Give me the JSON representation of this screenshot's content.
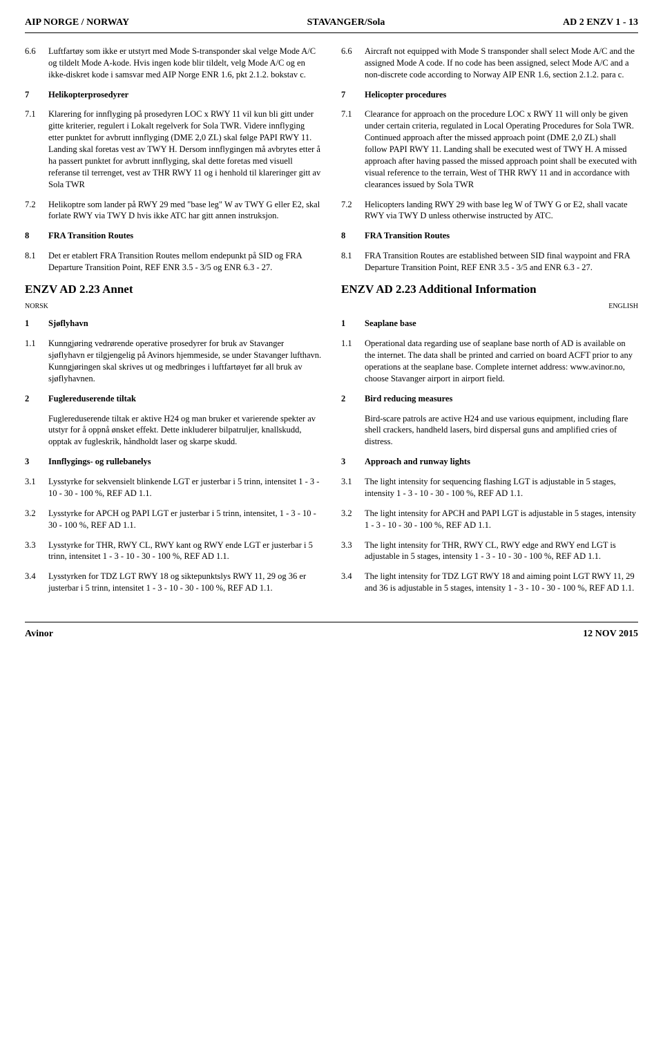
{
  "header": {
    "left": "AIP NORGE / NORWAY",
    "center": "STAVANGER/Sola",
    "right": "AD 2 ENZV 1 - 13"
  },
  "footer": {
    "left": "Avinor",
    "right": "12 NOV 2015"
  },
  "left": {
    "p66_num": "6.6",
    "p66": "Luftfartøy som ikke er utstyrt med Mode S-transponder skal velge Mode A/C og tildelt Mode A-kode. Hvis ingen kode blir tildelt, velg Mode A/C og en ikke-diskret kode i samsvar med AIP Norge ENR 1.6, pkt 2.1.2. bokstav c.",
    "h7_num": "7",
    "h7": "Helikopterprosedyrer",
    "p71_num": "7.1",
    "p71": "Klarering for innflyging på prosedyren LOC x RWY 11 vil kun bli gitt under gitte kriterier, regulert i Lokalt regelverk for Sola TWR. Videre innflyging etter punktet for avbrutt innflyging (DME 2,0 ZL) skal følge PAPI RWY 11. Landing skal foretas vest av TWY H. Dersom innflygingen må avbrytes etter å ha passert punktet for avbrutt innflyging, skal dette foretas med visuell referanse til terrenget, vest av THR RWY 11 og i henhold til klareringer gitt av Sola TWR",
    "p72_num": "7.2",
    "p72": "Helikoptre som lander på RWY 29 med \"base leg\" W av TWY G eller E2, skal forlate RWY via TWY D hvis ikke ATC har gitt annen instruksjon.",
    "h8_num": "8",
    "h8": "FRA Transition Routes",
    "p81_num": "8.1",
    "p81": "Det er etablert FRA Transition Routes mellom endepunkt på SID og FRA Departure Transition Point, REF ENR 3.5 - 3/5 og ENR 6.3 - 27.",
    "sec_title": "ENZV AD 2.23   Annet",
    "lang": "NORSK",
    "h1_num": "1",
    "h1": "Sjøflyhavn",
    "p11_num": "1.1",
    "p11": "Kunngjøring vedrørende operative prosedyrer for bruk av Stavanger sjøflyhavn er tilgjengelig på Avinors hjemmeside, se under Stavanger lufthavn. Kunngjøringen skal skrives ut og medbringes i luftfartøyet før all bruk av sjøflyhavnen.",
    "h2_num": "2",
    "h2": "Fuglereduserende tiltak",
    "p2": "Fuglereduserende tiltak er aktive H24 og man bruker et varierende spekter av utstyr for å oppnå ønsket effekt. Dette inkluderer bilpatruljer, knallskudd, opptak av fugleskrik, håndholdt laser og skarpe skudd.",
    "h3_num": "3",
    "h3": "Innflygings- og rullebanelys",
    "p31_num": "3.1",
    "p31": "Lysstyrke for sekvensielt blinkende LGT er justerbar i 5 trinn, intensitet 1 - 3 - 10 - 30 - 100 %, REF AD 1.1.",
    "p32_num": "3.2",
    "p32": "Lysstyrke for APCH og PAPI LGT er justerbar i 5 trinn, intensitet, 1 - 3 - 10 - 30 - 100 %, REF AD 1.1.",
    "p33_num": "3.3",
    "p33": "Lysstyrke for THR, RWY CL, RWY kant og RWY ende LGT er justerbar i 5 trinn, intensitet 1 - 3 - 10 - 30 - 100 %, REF AD 1.1.",
    "p34_num": "3.4",
    "p34": "Lysstyrken for TDZ LGT RWY 18 og siktepunktslys RWY 11, 29 og 36 er justerbar i 5 trinn, intensitet 1 - 3 - 10 - 30 - 100 %, REF AD 1.1."
  },
  "right": {
    "p66_num": "6.6",
    "p66": "Aircraft not equipped with Mode S transponder shall select Mode A/C and the assigned Mode A code. If no code has been assigned, select Mode A/C and a non-discrete code according to Norway AIP ENR 1.6, section 2.1.2. para c.",
    "h7_num": "7",
    "h7": "Helicopter procedures",
    "p71_num": "7.1",
    "p71": "Clearance for approach on the procedure LOC x RWY 11 will only be given under certain criteria, regulated in Local Operating Procedures for Sola TWR. Continued approach after the missed approach point (DME 2,0 ZL) shall follow PAPI RWY 11. Landing shall be executed west of TWY H. A missed approach after having passed the missed approach point shall be executed with visual reference to the terrain, West of THR RWY 11 and in accordance with clearances issued by Sola TWR",
    "p72_num": "7.2",
    "p72": "Helicopters landing RWY 29 with base leg W of TWY G or E2, shall vacate RWY via TWY D unless otherwise instructed by ATC.",
    "h8_num": "8",
    "h8": "FRA Transition Routes",
    "p81_num": "8.1",
    "p81": "FRA Transition Routes are established between SID final waypoint and FRA Departure Transition Point, REF ENR 3.5 - 3/5 and ENR 6.3 - 27.",
    "sec_title": "ENZV AD 2.23   Additional Information",
    "lang": "ENGLISH",
    "h1_num": "1",
    "h1": "Seaplane base",
    "p11_num": "1.1",
    "p11": "Operational data regarding use of seaplane base north of AD is available on the internet. The data shall be printed and carried on board ACFT prior to any operations at the seaplane base. Complete internet address: www.avinor.no, choose Stavanger airport in airport field.",
    "h2_num": "2",
    "h2": "Bird reducing measures",
    "p2": "Bird-scare patrols are active H24 and use various equipment, including flare shell crackers, handheld lasers, bird dispersal guns and amplified cries of distress.",
    "h3_num": "3",
    "h3": "Approach and runway lights",
    "p31_num": "3.1",
    "p31": "The light intensity for sequencing flashing LGT is adjustable in 5 stages, intensity 1 - 3 - 10 - 30 - 100 %, REF AD 1.1.",
    "p32_num": "3.2",
    "p32": "The light intensity for APCH and PAPI LGT is adjustable in 5 stages, intensity 1 - 3 - 10 - 30 - 100 %, REF AD 1.1.",
    "p33_num": "3.3",
    "p33": "The light intensity for THR, RWY CL, RWY edge and RWY end LGT is adjustable in 5 stages, intensity 1 - 3 - 10 - 30 - 100 %, REF AD 1.1.",
    "p34_num": "3.4",
    "p34": "The light intensity for TDZ LGT RWY 18 and aiming point LGT RWY 11, 29 and 36 is adjustable in 5 stages, intensity 1 - 3 - 10 - 30 - 100 %, REF AD 1.1."
  }
}
